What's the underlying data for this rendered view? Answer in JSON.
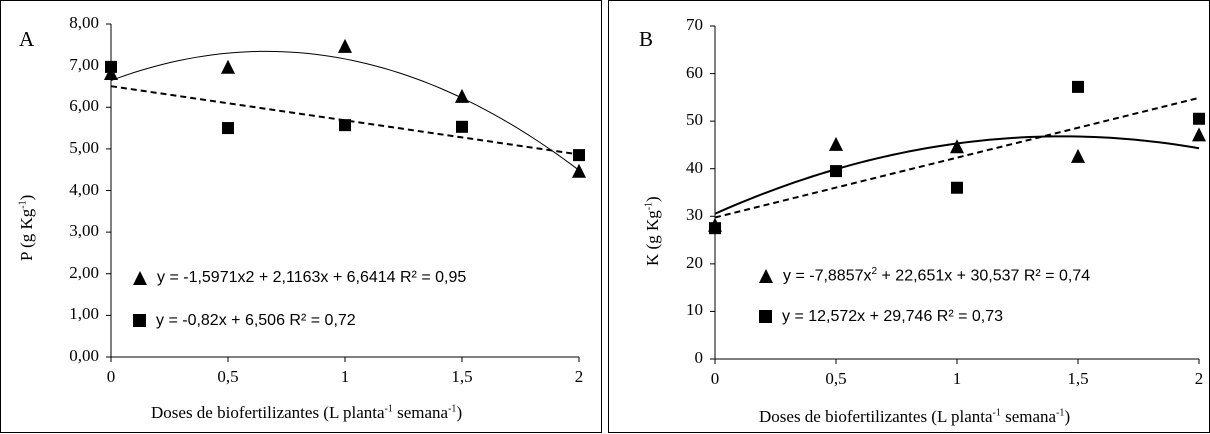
{
  "chart_data": [
    {
      "type": "scatter",
      "panel_label": "A",
      "ylabel_main": "P (g Kg",
      "ylabel_sup": "-1",
      "ylabel_end": ")",
      "xlabel_main": "Doses de biofertilizantes (L planta",
      "xlabel_sup1": "-1",
      "xlabel_mid": " semana",
      "xlabel_sup2": "-1",
      "xlabel_end": ")",
      "xlim": [
        0,
        2
      ],
      "ylim": [
        0,
        8
      ],
      "x_ticks": [
        "0",
        "0,5",
        "1",
        "1,5",
        "2"
      ],
      "x_tick_values": [
        0,
        0.5,
        1,
        1.5,
        2
      ],
      "y_ticks": [
        "0,00",
        "1,00",
        "2,00",
        "3,00",
        "4,00",
        "5,00",
        "6,00",
        "7,00",
        "8,00"
      ],
      "y_tick_values": [
        0,
        1,
        2,
        3,
        4,
        5,
        6,
        7,
        8
      ],
      "series": [
        {
          "marker": "triangle",
          "x": [
            0,
            0.5,
            1,
            1.5,
            2
          ],
          "y": [
            6.8,
            6.95,
            7.45,
            6.25,
            4.45
          ],
          "fit": {
            "a": -1.5971,
            "b": 2.1163,
            "c": 6.6414,
            "style": "solid"
          },
          "equation": "y = -1,5971x2 + 2,1163x + 6,6414 R² = 0,95"
        },
        {
          "marker": "square",
          "x": [
            0,
            0.5,
            1,
            1.5,
            2
          ],
          "y": [
            6.97,
            5.5,
            5.57,
            5.53,
            4.85
          ],
          "fit": {
            "a": 0,
            "b": -0.82,
            "c": 6.506,
            "style": "dashed"
          },
          "equation": "y = -0,82x + 6,506 R² = 0,72"
        }
      ]
    },
    {
      "type": "scatter",
      "panel_label": "B",
      "ylabel_main": "K (g Kg",
      "ylabel_sup": "-1",
      "ylabel_end": ")",
      "xlabel_main": "Doses de biofertilizantes (L planta",
      "xlabel_sup1": "-1",
      "xlabel_mid": " semana",
      "xlabel_sup2": "-1",
      "xlabel_end": ")",
      "xlim": [
        0,
        2
      ],
      "ylim": [
        0,
        70
      ],
      "x_ticks": [
        "0",
        "0,5",
        "1",
        "1,5",
        "2"
      ],
      "x_tick_values": [
        0,
        0.5,
        1,
        1.5,
        2
      ],
      "y_ticks": [
        "0",
        "10",
        "20",
        "30",
        "40",
        "50",
        "60",
        "70"
      ],
      "y_tick_values": [
        0,
        10,
        20,
        30,
        40,
        50,
        60,
        70
      ],
      "series": [
        {
          "marker": "triangle",
          "x": [
            0,
            0.5,
            1,
            1.5,
            2
          ],
          "y": [
            28,
            45,
            44.5,
            42.5,
            47
          ],
          "fit": {
            "a": -7.8857,
            "b": 22.651,
            "c": 30.537,
            "style": "solid"
          },
          "equation_pre": "y = -7,8857x",
          "equation_sup": "2",
          "equation_post": " + 22,651x + 30,537 R² = 0,74"
        },
        {
          "marker": "square",
          "x": [
            0,
            0.5,
            1,
            1.5,
            2
          ],
          "y": [
            27.5,
            39.5,
            36,
            57.2,
            50.5
          ],
          "fit": {
            "a": 0,
            "b": 12.572,
            "c": 29.746,
            "style": "dashed"
          },
          "equation": "y = 12,572x + 29,746 R² = 0,73"
        }
      ]
    }
  ]
}
